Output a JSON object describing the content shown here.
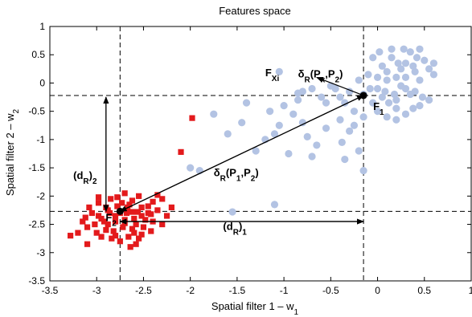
{
  "chart_data": {
    "type": "scatter",
    "title": "Features space",
    "xlabel": {
      "main": "Spatial filter 1 – w",
      "sub": "1"
    },
    "ylabel": {
      "main": "Spatial filter 2 – w",
      "sub": "2"
    },
    "xlim": [
      -3.5,
      1
    ],
    "ylim": [
      -3.5,
      1
    ],
    "xticks": [
      -3.5,
      -3,
      -2.5,
      -2,
      -1.5,
      -1,
      -0.5,
      0,
      0.5,
      1
    ],
    "yticks": [
      -3.5,
      -3,
      -2.5,
      -2,
      -1.5,
      -1,
      -0.5,
      0,
      0.5,
      1
    ],
    "grid": false,
    "colors": {
      "class1": "#e31a1c",
      "class2": "#b3c3e3",
      "annotation": "#000000"
    },
    "series": [
      {
        "marker": "square",
        "points": [
          [
            -2.75,
            -2.3
          ],
          [
            -2.62,
            -2.28
          ],
          [
            -2.52,
            -2.2
          ],
          [
            -2.88,
            -2.25
          ],
          [
            -2.8,
            -2.35
          ],
          [
            -2.7,
            -2.42
          ],
          [
            -2.58,
            -2.5
          ],
          [
            -2.95,
            -2.4
          ],
          [
            -3.05,
            -2.3
          ],
          [
            -2.65,
            -2.15
          ],
          [
            -2.45,
            -2.3
          ],
          [
            -2.4,
            -2.1
          ],
          [
            -2.9,
            -2.6
          ],
          [
            -2.8,
            -2.7
          ],
          [
            -2.6,
            -2.65
          ],
          [
            -2.5,
            -2.55
          ],
          [
            -3.1,
            -2.55
          ],
          [
            -3.2,
            -2.65
          ],
          [
            -3.28,
            -2.7
          ],
          [
            -2.98,
            -2.12
          ],
          [
            -2.85,
            -2.05
          ],
          [
            -2.55,
            -2.0
          ],
          [
            -2.35,
            -2.25
          ],
          [
            -2.3,
            -2.05
          ],
          [
            -2.7,
            -1.95
          ],
          [
            -2.6,
            -2.4
          ],
          [
            -2.72,
            -2.55
          ],
          [
            -2.92,
            -2.45
          ],
          [
            -3.0,
            -2.65
          ],
          [
            -2.75,
            -2.8
          ],
          [
            -2.55,
            -2.75
          ],
          [
            -2.48,
            -2.42
          ],
          [
            -2.42,
            -2.62
          ],
          [
            -3.15,
            -2.45
          ],
          [
            -2.68,
            -2.3
          ],
          [
            -2.78,
            -2.18
          ],
          [
            -2.88,
            -2.5
          ],
          [
            -2.62,
            -2.08
          ],
          [
            -2.52,
            -2.35
          ],
          [
            -2.98,
            -2.35
          ],
          [
            -3.08,
            -2.2
          ],
          [
            -2.82,
            -2.62
          ],
          [
            -2.66,
            -2.72
          ],
          [
            -2.45,
            -2.18
          ],
          [
            -2.25,
            -2.35
          ],
          [
            -2.58,
            -2.85
          ],
          [
            -2.86,
            -2.3
          ],
          [
            -2.7,
            -2.48
          ],
          [
            -2.95,
            -2.72
          ],
          [
            -2.4,
            -2.45
          ],
          [
            -2.62,
            -2.58
          ],
          [
            -2.78,
            -2.02
          ],
          [
            -3.1,
            -2.85
          ],
          [
            -2.9,
            -2.2
          ],
          [
            -2.35,
            -1.98
          ],
          [
            -2.52,
            -2.68
          ],
          [
            -2.2,
            -2.2
          ],
          [
            -2.3,
            -2.5
          ],
          [
            -3.02,
            -2.5
          ],
          [
            -2.67,
            -2.2
          ],
          [
            -2.73,
            -2.12
          ],
          [
            -2.8,
            -2.45
          ],
          [
            -2.56,
            -2.28
          ],
          [
            -2.98,
            -2.02
          ],
          [
            -2.84,
            -2.75
          ],
          [
            -2.64,
            -2.9
          ],
          [
            -2.42,
            -2.32
          ],
          [
            -1.98,
            -0.62
          ],
          [
            -2.1,
            -1.22
          ],
          [
            -3.12,
            -2.38
          ]
        ]
      },
      {
        "marker": "circle",
        "points": [
          [
            -0.15,
            -0.2
          ],
          [
            0.0,
            -0.1
          ],
          [
            0.1,
            0.05
          ],
          [
            0.2,
            -0.3
          ],
          [
            0.3,
            0.1
          ],
          [
            0.4,
            0.2
          ],
          [
            0.05,
            0.3
          ],
          [
            0.15,
            0.45
          ],
          [
            -0.05,
            -0.35
          ],
          [
            0.25,
            -0.05
          ],
          [
            0.35,
            -0.2
          ],
          [
            0.45,
            -0.4
          ],
          [
            0.5,
            0.4
          ],
          [
            0.55,
            0.25
          ],
          [
            0.6,
            0.15
          ],
          [
            -0.2,
            0.05
          ],
          [
            -0.3,
            -0.15
          ],
          [
            -0.35,
            -0.35
          ],
          [
            0.0,
            -0.5
          ],
          [
            0.1,
            -0.6
          ],
          [
            0.2,
            -0.45
          ],
          [
            0.3,
            -0.55
          ],
          [
            0.15,
            0.6
          ],
          [
            0.35,
            0.55
          ],
          [
            0.45,
            0.05
          ],
          [
            -0.1,
            0.15
          ],
          [
            0.05,
            -0.25
          ],
          [
            0.25,
            0.25
          ],
          [
            0.4,
            -0.15
          ],
          [
            0.1,
            0.2
          ],
          [
            -0.25,
            -0.5
          ],
          [
            -0.4,
            -0.25
          ],
          [
            0.3,
            0.35
          ],
          [
            0.45,
            0.6
          ],
          [
            0.2,
            0.1
          ],
          [
            -0.05,
            0.45
          ],
          [
            0.55,
            -0.3
          ],
          [
            0.38,
            -0.45
          ],
          [
            0.12,
            -0.35
          ],
          [
            -0.15,
            -0.6
          ],
          [
            0.22,
            0.35
          ],
          [
            0.08,
            -0.15
          ],
          [
            0.3,
            -0.1
          ],
          [
            0.48,
            -0.25
          ],
          [
            -0.08,
            -0.1
          ],
          [
            0.18,
            -0.2
          ],
          [
            0.38,
            0.3
          ],
          [
            0.0,
            0.1
          ],
          [
            0.6,
            0.35
          ],
          [
            0.02,
            0.55
          ],
          [
            0.28,
            0.6
          ],
          [
            0.42,
            0.45
          ],
          [
            0.2,
            -0.65
          ],
          [
            -0.45,
            -0.1
          ],
          [
            -0.55,
            -0.35
          ],
          [
            -0.5,
            -0.05
          ],
          [
            -0.6,
            -0.25
          ],
          [
            -0.7,
            -0.1
          ],
          [
            -0.85,
            -0.3
          ],
          [
            -0.9,
            -0.55
          ],
          [
            -0.8,
            -0.7
          ],
          [
            -1.0,
            -0.4
          ],
          [
            -1.05,
            -0.75
          ],
          [
            -1.1,
            -0.9
          ],
          [
            -1.2,
            -1.0
          ],
          [
            -0.75,
            -0.95
          ],
          [
            -0.65,
            -1.1
          ],
          [
            -0.55,
            -0.8
          ],
          [
            -0.4,
            -0.65
          ],
          [
            -0.3,
            -0.85
          ],
          [
            -0.2,
            -1.2
          ],
          [
            -0.15,
            -1.55
          ],
          [
            -0.35,
            -1.35
          ],
          [
            -0.7,
            -1.3
          ],
          [
            -0.95,
            -1.25
          ],
          [
            -1.45,
            -0.7
          ],
          [
            -1.6,
            -0.9
          ],
          [
            -1.3,
            -1.2
          ],
          [
            -1.9,
            -1.55
          ],
          [
            -2.0,
            -1.5
          ],
          [
            -1.55,
            -2.28
          ],
          [
            -1.1,
            -2.15
          ],
          [
            -1.05,
            0.2
          ],
          [
            -0.85,
            -0.18
          ],
          [
            -0.8,
            -0.15
          ],
          [
            -1.75,
            -0.55
          ],
          [
            -1.4,
            -0.35
          ],
          [
            -1.15,
            -0.5
          ],
          [
            -0.25,
            -0.75
          ],
          [
            -0.38,
            -1.05
          ]
        ]
      }
    ],
    "highlight_points": [
      {
        "label": "F",
        "sub": "1",
        "x": -0.15,
        "y": -0.22
      },
      {
        "label": "F",
        "sub": "2",
        "x": -2.75,
        "y": -2.27
      }
    ],
    "reference_lines": {
      "vertical": [
        -2.75,
        -0.15
      ],
      "horizontal": [
        -0.22,
        -2.27
      ]
    },
    "annotations": [
      {
        "label": "(d",
        "sub": "R",
        "tail": ")",
        "index": "2",
        "x": -3.25,
        "y": -1.7
      },
      {
        "label": "(d",
        "sub": "R",
        "tail": ")",
        "index": "1",
        "x": -1.65,
        "y": -2.6
      },
      {
        "label": "δ",
        "sub": "R",
        "tail": "(P",
        "sub2": "1",
        "tail2": ",P",
        "sub3": "2",
        "tail3": ")",
        "x": -1.75,
        "y": -1.65
      },
      {
        "label": "δ",
        "sub": "R",
        "tail": "(P",
        "sub2": "x",
        "tail2": ",P",
        "sub3": "2",
        "tail3": ")",
        "x": -0.85,
        "y": 0.1
      },
      {
        "label": "F",
        "sub": "X",
        "sub2": "i",
        "x": -1.2,
        "y": 0.12
      }
    ],
    "arrows": [
      {
        "from": [
          -2.75,
          -2.27
        ],
        "to": [
          -0.15,
          -0.22
        ]
      },
      {
        "from": [
          -0.15,
          -0.22
        ],
        "to": [
          -2.75,
          -2.27
        ]
      },
      {
        "from": [
          -2.9,
          -0.25
        ],
        "to": [
          -2.9,
          -2.27
        ]
      },
      {
        "from": [
          -2.9,
          -2.27
        ],
        "to": [
          -2.9,
          -0.25
        ]
      },
      {
        "from": [
          -2.75,
          -2.45
        ],
        "to": [
          -0.15,
          -2.45
        ]
      },
      {
        "from": [
          -0.15,
          -2.45
        ],
        "to": [
          -2.75,
          -2.45
        ]
      },
      {
        "from": [
          -0.15,
          -0.22
        ],
        "to": [
          -0.65,
          0.1
        ]
      }
    ]
  }
}
